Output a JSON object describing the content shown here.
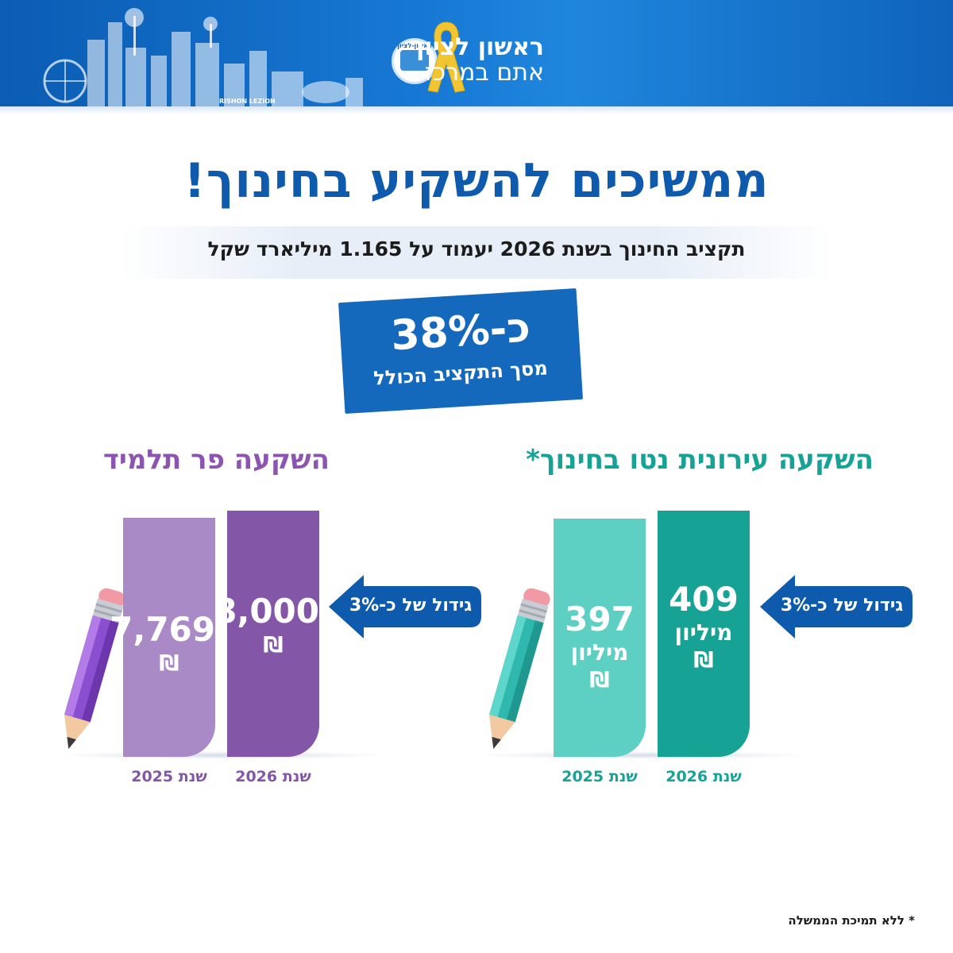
{
  "header": {
    "logo_line1": "ראשון לציון",
    "logo_line2": "אתם במרכז",
    "seal_text": "ראשון-לציון",
    "skyline_text": "RISHON LEZION"
  },
  "title": "ממשיכים להשקיע בחינוך!",
  "subtitle": "תקציב החינוך בשנת 2026 יעמוד על 1.165 מיליארד שקל",
  "stamp": {
    "big": "כ-38%",
    "small": "מסך התקציב הכולל"
  },
  "footnote": "* ללא תמיכת הממשלה",
  "colors": {
    "brand_blue": "#0e5aad",
    "teal_dark": "#17a296",
    "teal_light": "#5ecfc3",
    "purple_dark": "#8456a8",
    "purple_light": "#a98ac6",
    "teal_title": "#17a296",
    "purple_title": "#8c56b0"
  },
  "chart_data": [
    {
      "type": "bar",
      "title": "השקעה עירונית נטו בחינוך*",
      "categories": [
        "שנת 2026",
        "שנת 2025"
      ],
      "values": [
        409,
        397
      ],
      "value_labels": [
        "409",
        "397"
      ],
      "unit_label": "מיליון",
      "currency_label": "₪",
      "change_label": "גידול של כ-3%",
      "ylim": [
        0,
        440
      ]
    },
    {
      "type": "bar",
      "title": "השקעה פר תלמיד",
      "categories": [
        "שנת 2026",
        "שנת 2025"
      ],
      "values": [
        8000,
        7769
      ],
      "value_labels": [
        "8,000",
        "7,769"
      ],
      "currency_label": "₪",
      "change_label": "גידול של כ-3%",
      "ylim": [
        0,
        8600
      ]
    }
  ]
}
